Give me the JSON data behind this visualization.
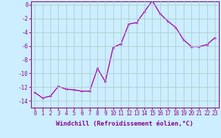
{
  "x": [
    0,
    1,
    2,
    3,
    4,
    5,
    6,
    7,
    8,
    9,
    10,
    11,
    12,
    13,
    14,
    15,
    16,
    17,
    18,
    19,
    20,
    21,
    22,
    23
  ],
  "y": [
    -12.8,
    -13.6,
    -13.3,
    -11.9,
    -12.3,
    -12.4,
    -12.6,
    -12.6,
    -9.3,
    -11.2,
    -6.2,
    -5.7,
    -2.8,
    -2.6,
    -1.0,
    0.6,
    -1.3,
    -2.4,
    -3.3,
    -5.1,
    -6.1,
    -6.1,
    -5.8,
    -4.8
  ],
  "line_color": "#aa00aa",
  "marker": "s",
  "marker_size": 2.0,
  "bg_color": "#cceeff",
  "grid_color": "#aacccc",
  "xlabel": "Windchill (Refroidissement éolien,°C)",
  "xlim": [
    -0.5,
    23.5
  ],
  "ylim": [
    -15.0,
    0.5
  ],
  "yticks": [
    0,
    -2,
    -4,
    -6,
    -8,
    -10,
    -12,
    -14
  ],
  "xticks": [
    0,
    1,
    2,
    3,
    4,
    5,
    6,
    7,
    8,
    9,
    10,
    11,
    12,
    13,
    14,
    15,
    16,
    17,
    18,
    19,
    20,
    21,
    22,
    23
  ],
  "tick_label_color": "#880088",
  "axis_color": "#880088",
  "label_fontsize": 6.5,
  "tick_fontsize": 5.5,
  "linewidth": 1.0
}
